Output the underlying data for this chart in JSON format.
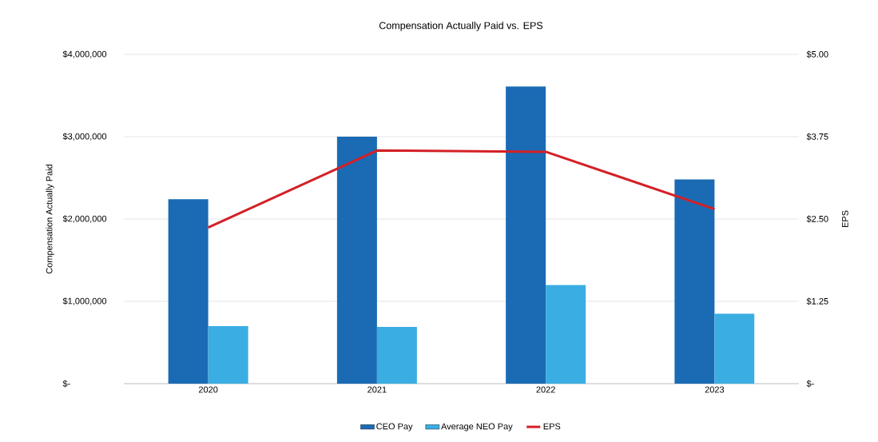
{
  "chart_data": {
    "type": "bar",
    "title": "Compensation Actually Paid vs. EPS",
    "ylabel": "Compensation Actually Paid",
    "y2label": "EPS",
    "categories": [
      "2020",
      "2021",
      "2022",
      "2023"
    ],
    "series": [
      {
        "name": "CEO Pay",
        "color": "#1a6bb4",
        "values": [
          2240000,
          3000000,
          3610000,
          2480000
        ]
      },
      {
        "name": "Average NEO Pay",
        "color": "#3aade3",
        "values": [
          700000,
          690000,
          1200000,
          850000
        ]
      },
      {
        "name": "EPS",
        "type": "line",
        "axis": "y2",
        "color": "#d42027",
        "values": [
          2.37,
          3.54,
          3.52,
          2.65
        ]
      }
    ],
    "ylim": [
      0,
      4000000
    ],
    "yticks": [
      {
        "value": 0,
        "label": "$-"
      },
      {
        "value": 1000000,
        "label": "$1,000,000"
      },
      {
        "value": 2000000,
        "label": "$2,000,000"
      },
      {
        "value": 3000000,
        "label": "$3,000,000"
      },
      {
        "value": 4000000,
        "label": "$4,000,000"
      }
    ],
    "y2lim": [
      0,
      5
    ],
    "y2ticks": [
      {
        "value": 0,
        "label": "$-"
      },
      {
        "value": 1.25,
        "label": "$1.25"
      },
      {
        "value": 2.5,
        "label": "$2.50"
      },
      {
        "value": 3.75,
        "label": "$3.75"
      },
      {
        "value": 5,
        "label": "$5.00"
      }
    ],
    "grid": "y",
    "legend": "bottom"
  }
}
